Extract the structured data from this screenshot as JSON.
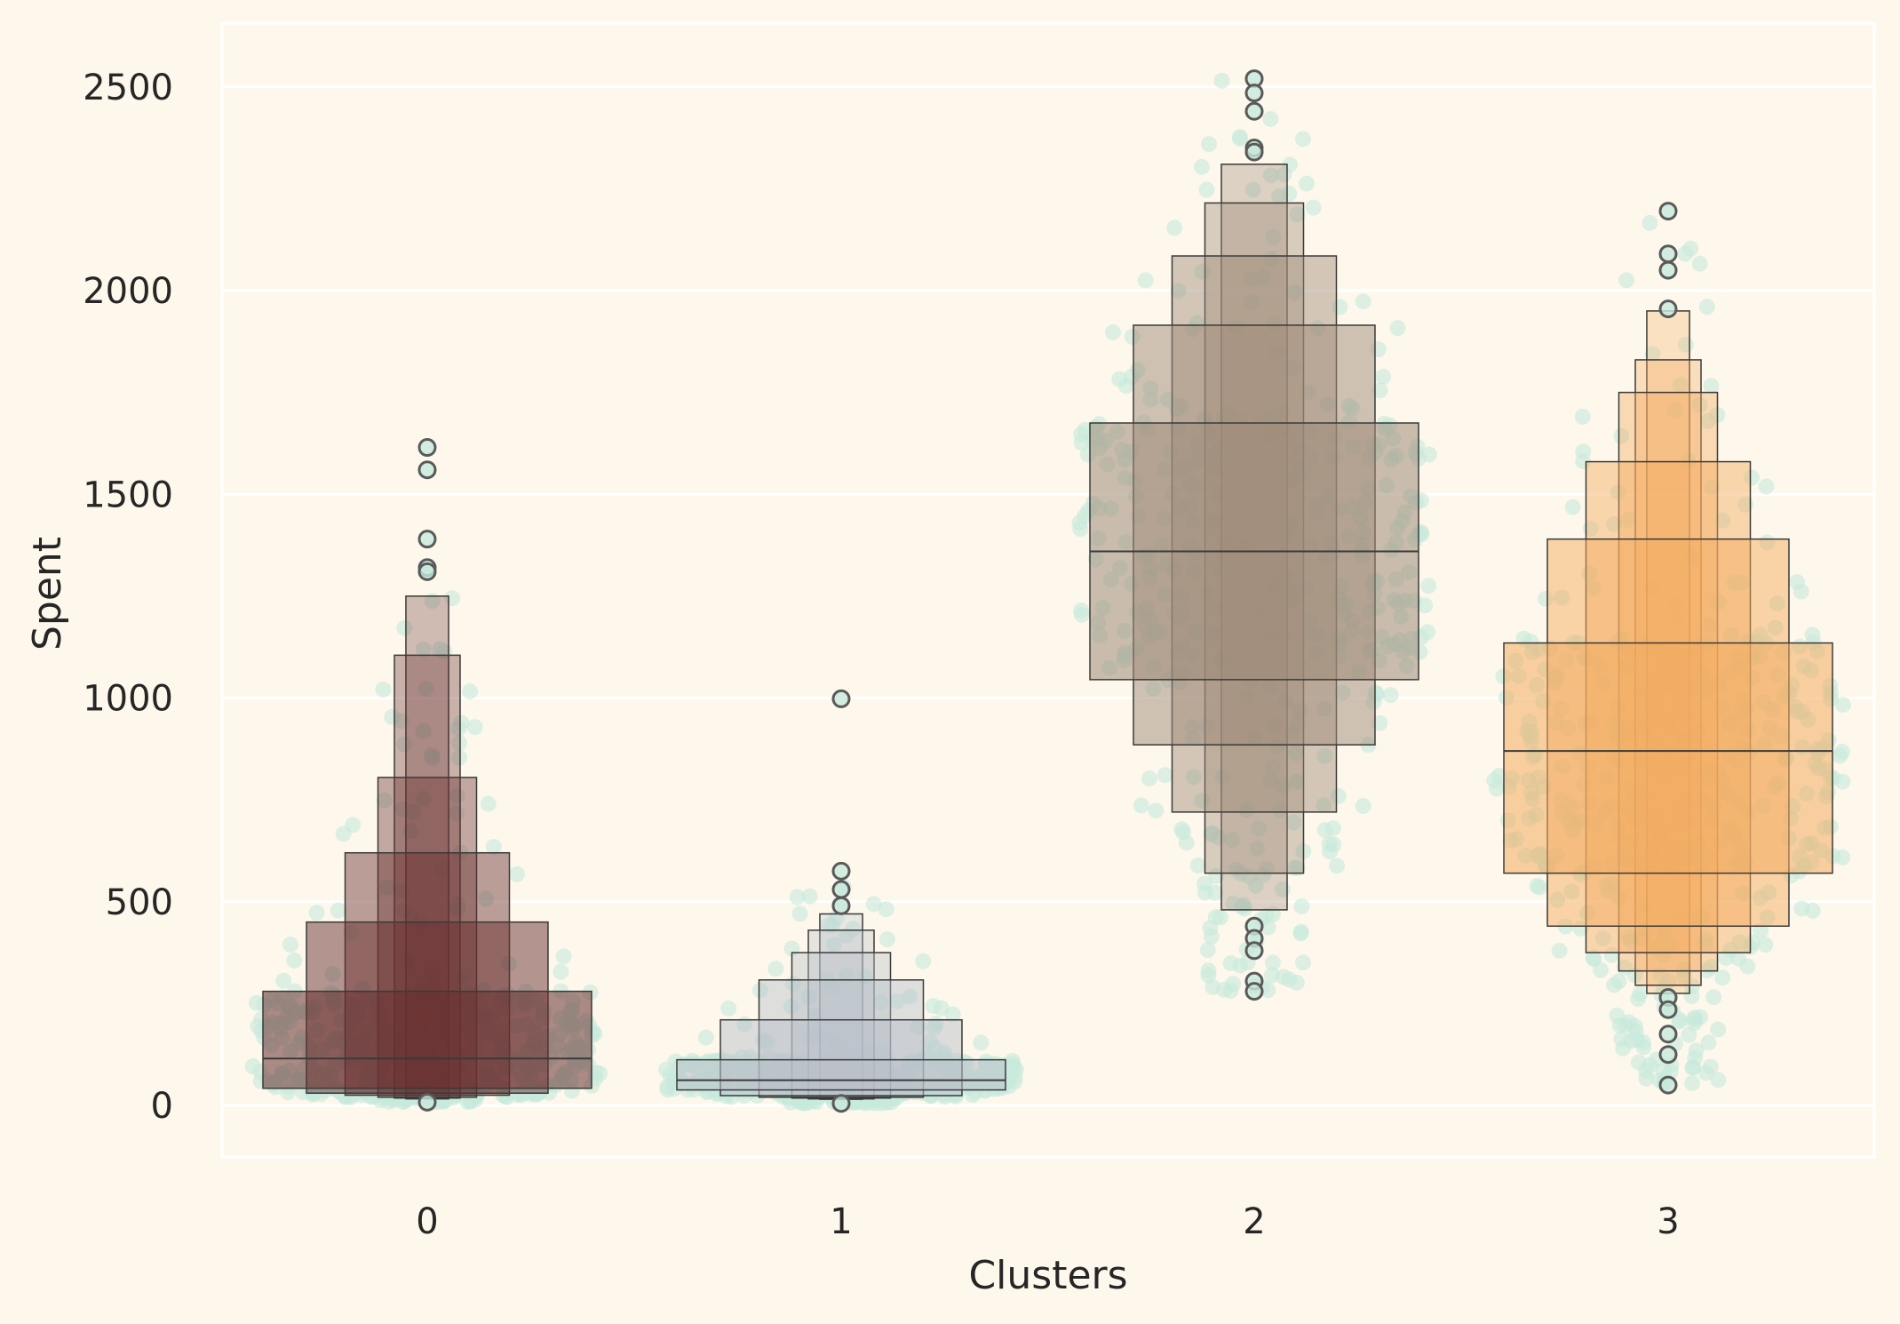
{
  "chart_data": {
    "type": "boxen",
    "title": "",
    "xlabel": "Clusters",
    "ylabel": "Spent",
    "categories": [
      "0",
      "1",
      "2",
      "3"
    ],
    "ylim": [
      -110,
      2640
    ],
    "yticks": [
      0,
      500,
      1000,
      1500,
      2000,
      2500
    ],
    "grid": true,
    "legend": "none",
    "swarm_color": "#C7E9DC",
    "groups": [
      {
        "cluster": "0",
        "color": "#682F2F",
        "median": 115,
        "boxes": [
          [
            42,
            280
          ],
          [
            30,
            450
          ],
          [
            25,
            620
          ],
          [
            20,
            805
          ],
          [
            18,
            1105
          ],
          [
            16,
            1250
          ]
        ],
        "outliers": [
          1615,
          1560,
          1390,
          1320,
          1310,
          8
        ],
        "swarm_range": [
          8,
          1320
        ]
      },
      {
        "cluster": "1",
        "color": "#B9C0C9",
        "median": 62,
        "boxes": [
          [
            38,
            112
          ],
          [
            24,
            210
          ],
          [
            20,
            308
          ],
          [
            18,
            375
          ],
          [
            16,
            430
          ],
          [
            15,
            470
          ]
        ],
        "outliers": [
          998,
          575,
          530,
          490,
          5
        ],
        "swarm_range": [
          5,
          560
        ]
      },
      {
        "cluster": "2",
        "color": "#9F8A78",
        "median": 1360,
        "boxes": [
          [
            1045,
            1675
          ],
          [
            885,
            1915
          ],
          [
            720,
            2085
          ],
          [
            570,
            2215
          ],
          [
            480,
            2310
          ]
        ],
        "outliers": [
          2520,
          2485,
          2440,
          2350,
          2340,
          440,
          410,
          380,
          305,
          280
        ],
        "swarm_range": [
          280,
          2520
        ]
      },
      {
        "cluster": "3",
        "color": "#F3AB60",
        "median": 870,
        "boxes": [
          [
            570,
            1135
          ],
          [
            440,
            1390
          ],
          [
            375,
            1580
          ],
          [
            330,
            1750
          ],
          [
            295,
            1830
          ],
          [
            275,
            1950
          ]
        ],
        "outliers": [
          2195,
          2090,
          2050,
          1955,
          265,
          235,
          175,
          125,
          50
        ],
        "swarm_range": [
          50,
          2195
        ]
      }
    ]
  }
}
